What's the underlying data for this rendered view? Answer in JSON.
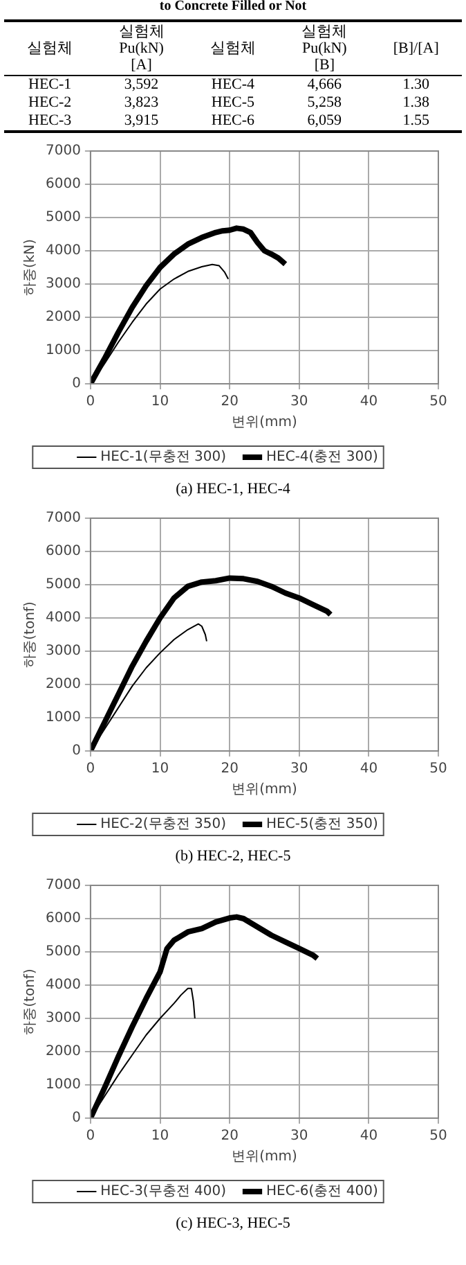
{
  "chart_data": [
    {
      "type": "other",
      "title": "to Concrete Filled or Not",
      "categories": [
        "실험체",
        "실험체\nPu(kN)\n[A]",
        "실험체",
        "실험체\nPu(kN)\n[B]",
        "[B]/[A]"
      ],
      "cell_labels": [
        [
          "HEC-1",
          "3,592",
          "HEC-4",
          "4,666",
          "1.30"
        ],
        [
          "HEC-2",
          "3,823",
          "HEC-5",
          "5,258",
          "1.38"
        ],
        [
          "HEC-3",
          "3,915",
          "HEC-6",
          "6,059",
          "1.55"
        ]
      ]
    },
    {
      "type": "line",
      "xlabel": "변위(mm)",
      "ylabel": "하중(kN)",
      "xlim": [
        0,
        50
      ],
      "xticks": [
        0,
        10,
        20,
        30,
        40,
        50
      ],
      "ylim": [
        0,
        7000
      ],
      "yticks": [
        0,
        1000,
        2000,
        3000,
        4000,
        5000,
        6000,
        7000
      ],
      "grid": true,
      "legend": "bottom",
      "marker": "none",
      "line_style": "solid",
      "annotations": [
        "(a)  HEC-1,  HEC-4"
      ],
      "series": [
        {
          "name": "HEC-1(무충전 300)",
          "color": "#000000",
          "x": [
            0,
            2,
            4,
            6,
            8,
            10,
            12,
            14,
            16,
            17.5,
            18.5,
            19.3,
            19.8
          ],
          "values": [
            0,
            600,
            1250,
            1850,
            2400,
            2850,
            3150,
            3380,
            3520,
            3590,
            3550,
            3350,
            3150
          ]
        },
        {
          "name": "HEC-4(충전 300)",
          "color": "#000000",
          "x": [
            0,
            2,
            4,
            6,
            8,
            10,
            12,
            14,
            16,
            18,
            19,
            20,
            21,
            22,
            23,
            24,
            25,
            26,
            27,
            28
          ],
          "values": [
            0,
            750,
            1550,
            2300,
            2950,
            3500,
            3900,
            4200,
            4400,
            4550,
            4600,
            4620,
            4680,
            4650,
            4550,
            4250,
            4000,
            3900,
            3780,
            3600
          ]
        }
      ]
    },
    {
      "type": "line",
      "xlabel": "변위(mm)",
      "ylabel": "하중(tonf)",
      "xlim": [
        0,
        50
      ],
      "xticks": [
        0,
        10,
        20,
        30,
        40,
        50
      ],
      "ylim": [
        0,
        7000
      ],
      "yticks": [
        0,
        1000,
        2000,
        3000,
        4000,
        5000,
        6000,
        7000
      ],
      "grid": true,
      "legend": "bottom",
      "marker": "none",
      "line_style": "solid",
      "annotations": [
        "(b)  HEC-2,  HEC-5"
      ],
      "series": [
        {
          "name": "HEC-2(무충전 350)",
          "color": "#000000",
          "x": [
            0,
            2,
            4,
            6,
            8,
            10,
            12,
            14,
            15.5,
            16,
            16.5,
            16.7
          ],
          "values": [
            0,
            650,
            1300,
            1950,
            2500,
            2950,
            3350,
            3650,
            3820,
            3750,
            3500,
            3300
          ]
        },
        {
          "name": "HEC-5(충전 350)",
          "color": "#000000",
          "x": [
            0,
            2,
            4,
            6,
            8,
            10,
            12,
            14,
            16,
            18,
            20,
            22,
            24,
            26,
            28,
            30,
            32,
            34,
            34.5
          ],
          "values": [
            0,
            850,
            1700,
            2550,
            3300,
            4000,
            4600,
            4950,
            5080,
            5120,
            5200,
            5180,
            5100,
            4950,
            4750,
            4600,
            4400,
            4200,
            4100
          ]
        }
      ]
    },
    {
      "type": "line",
      "xlabel": "변위(mm)",
      "ylabel": "하중(tonf)",
      "xlim": [
        0,
        50
      ],
      "xticks": [
        0,
        10,
        20,
        30,
        40,
        50
      ],
      "ylim": [
        0,
        7000
      ],
      "yticks": [
        0,
        1000,
        2000,
        3000,
        4000,
        5000,
        6000,
        7000
      ],
      "grid": true,
      "legend": "bottom",
      "marker": "none",
      "line_style": "solid",
      "annotations": [
        "(c)  HEC-3,  HEC-5"
      ],
      "series": [
        {
          "name": "HEC-3(무충전 400)",
          "color": "#000000",
          "x": [
            0,
            2,
            4,
            6,
            8,
            10,
            12,
            13,
            14,
            14.5,
            14.8,
            15
          ],
          "values": [
            0,
            650,
            1300,
            1900,
            2500,
            3000,
            3450,
            3700,
            3900,
            3900,
            3500,
            3000
          ]
        },
        {
          "name": "HEC-6(충전 400)",
          "color": "#000000",
          "x": [
            0,
            2,
            4,
            6,
            8,
            10,
            11,
            12,
            14,
            16,
            18,
            20,
            21,
            22,
            24,
            26,
            28,
            30,
            32,
            32.6
          ],
          "values": [
            0,
            900,
            1850,
            2750,
            3600,
            4400,
            5100,
            5350,
            5600,
            5700,
            5900,
            6020,
            6050,
            6000,
            5750,
            5500,
            5300,
            5100,
            4900,
            4800
          ]
        }
      ]
    }
  ]
}
